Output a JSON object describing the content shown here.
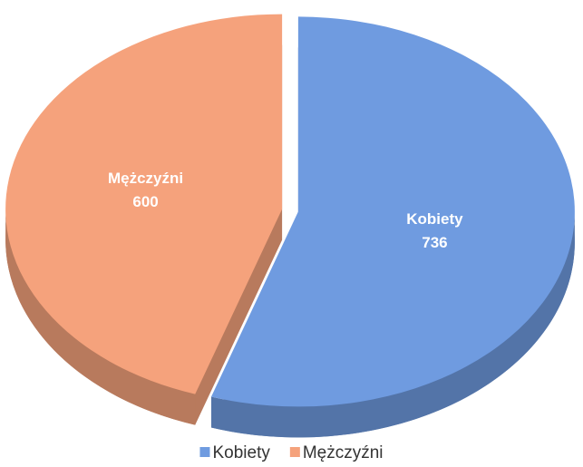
{
  "chart_data": {
    "type": "pie",
    "categories": [
      "Kobiety",
      "Mężczyźni"
    ],
    "values": [
      736,
      600
    ],
    "colors": [
      "#6f9be0",
      "#f5a27c"
    ],
    "legend": "bottom"
  }
}
